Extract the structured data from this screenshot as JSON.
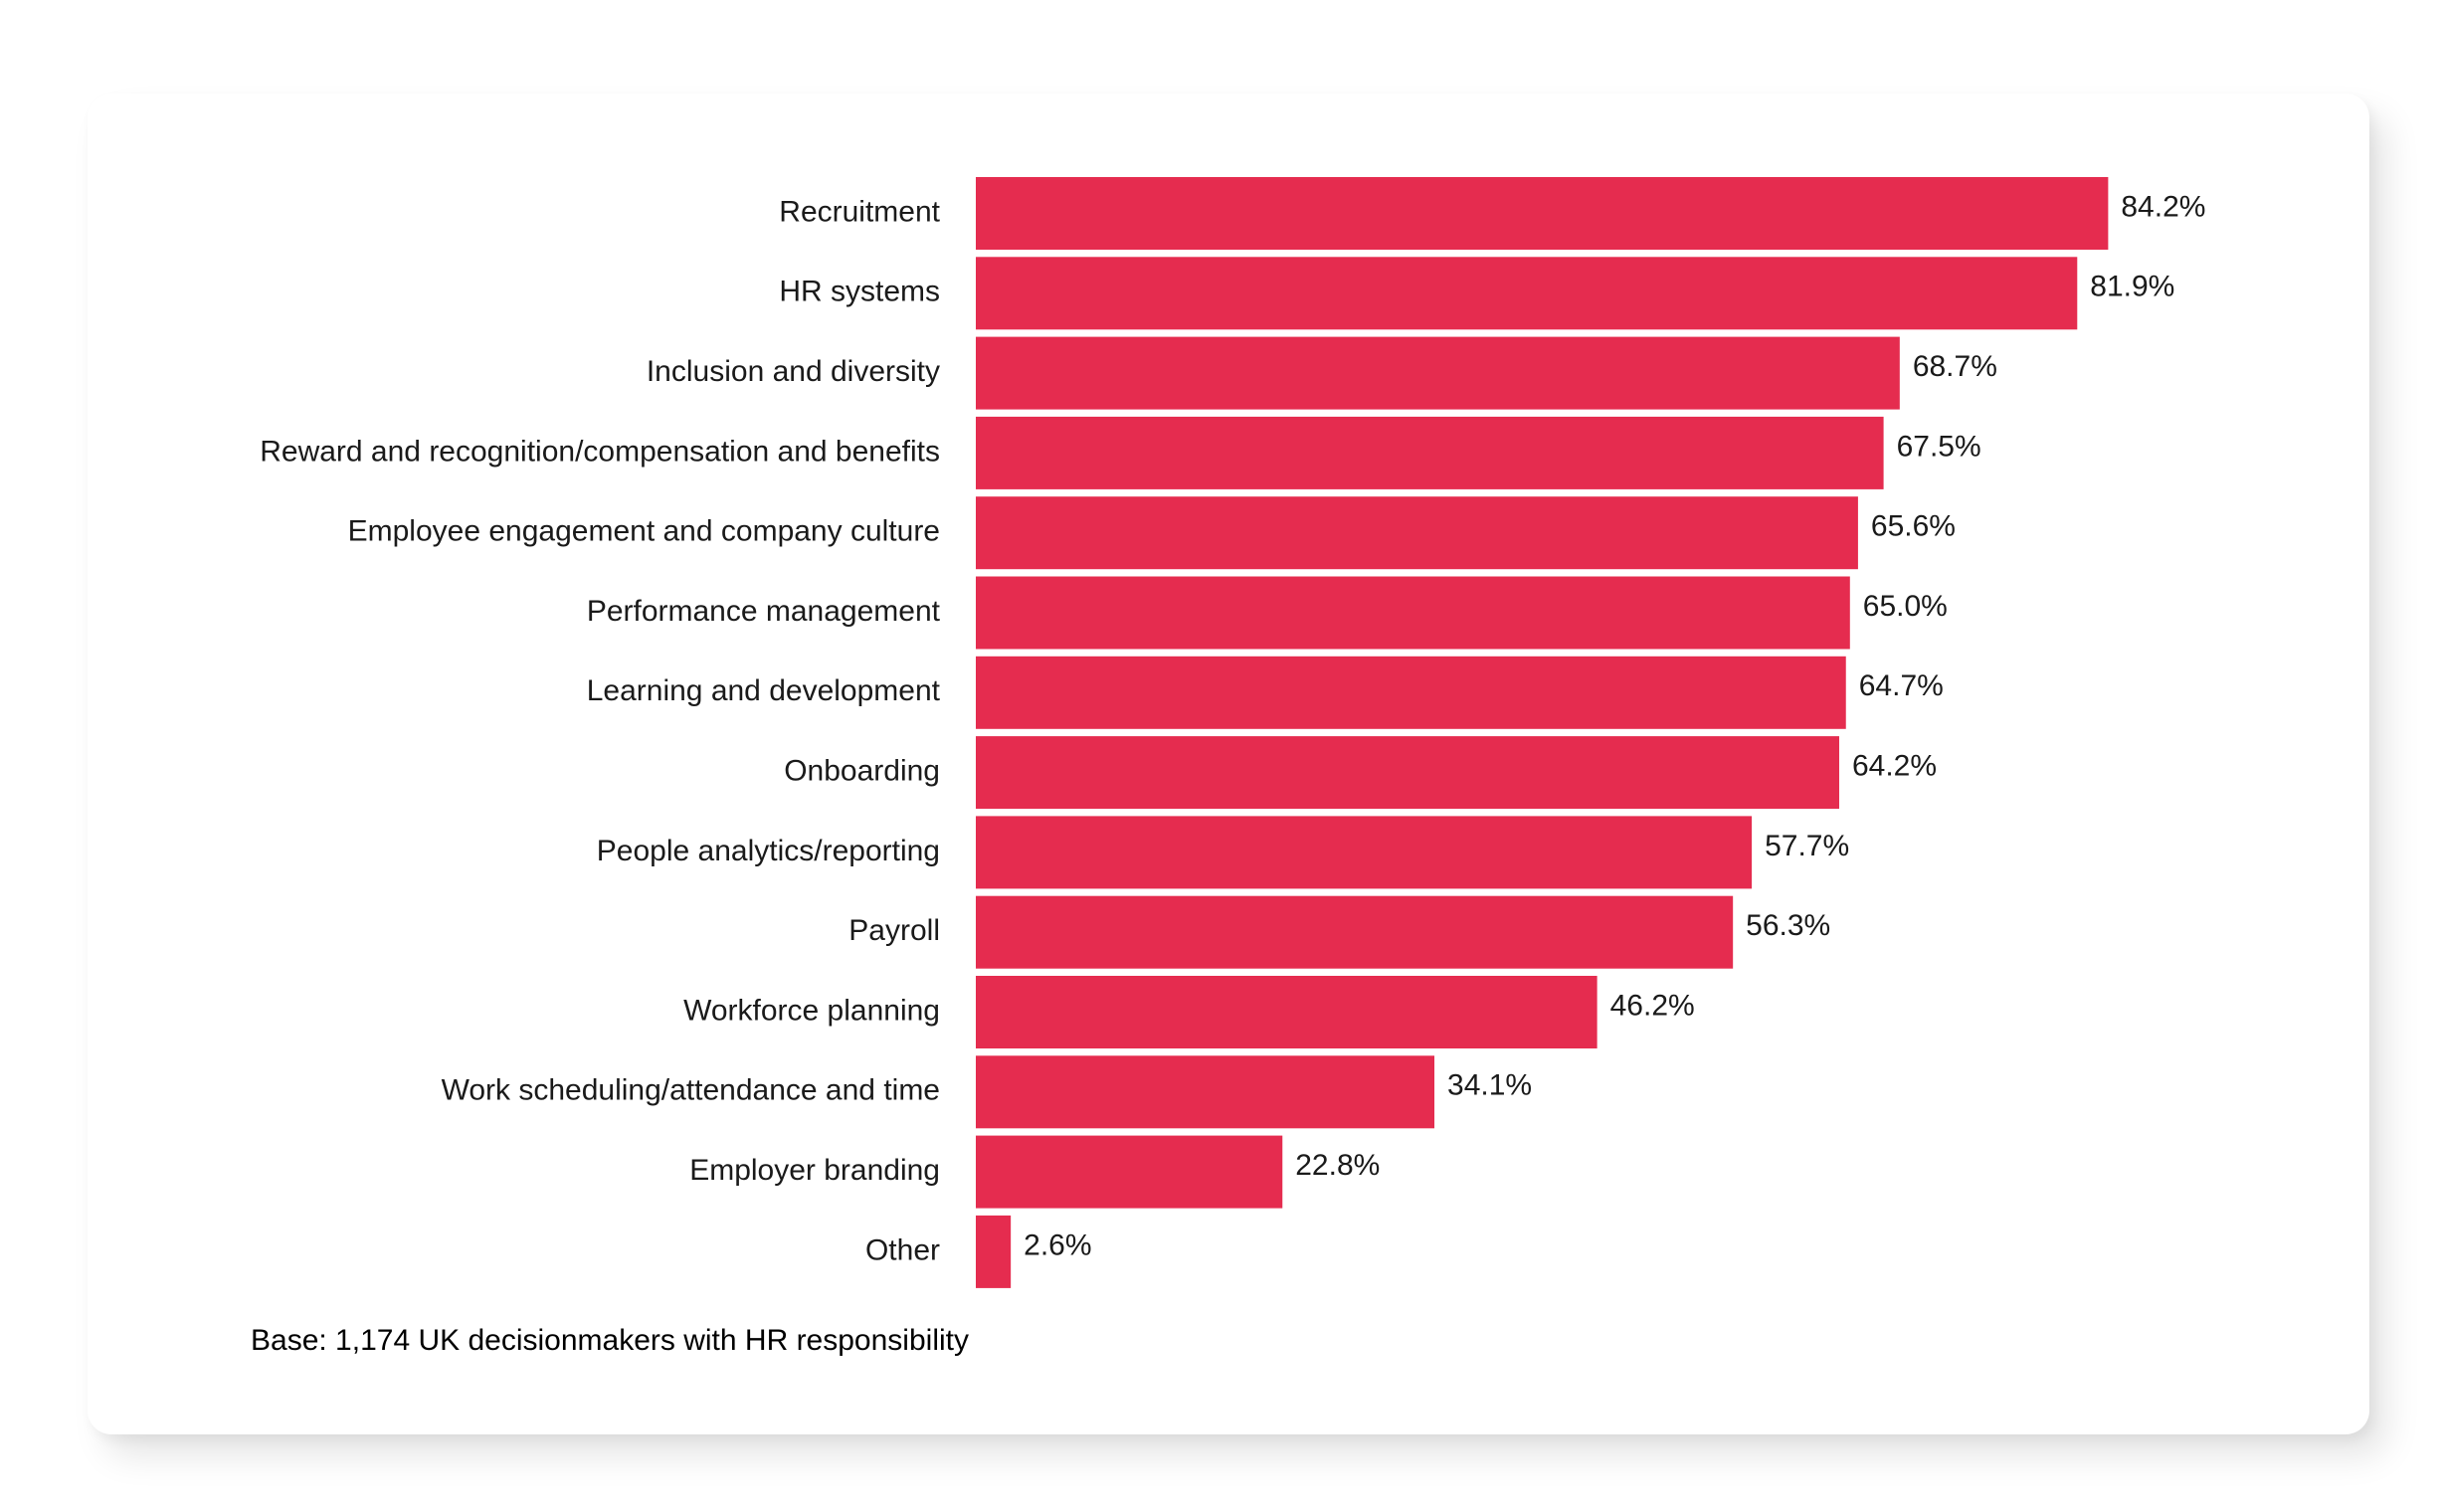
{
  "chart_data": {
    "type": "bar",
    "orientation": "horizontal",
    "title": "",
    "xlabel": "",
    "ylabel": "",
    "categories": [
      "Recruitment",
      "HR systems",
      "Inclusion and diversity",
      "Reward and recognition/compensation and benefits",
      "Employee engagement and company culture",
      "Performance management",
      "Learning and development",
      "Onboarding",
      "People analytics/reporting",
      "Payroll",
      "Workforce planning",
      "Work scheduling/attendance and time",
      "Employer branding",
      "Other"
    ],
    "values": [
      84.2,
      81.9,
      68.7,
      67.5,
      65.6,
      65.0,
      64.7,
      64.2,
      57.7,
      56.3,
      46.2,
      34.1,
      22.8,
      2.6
    ],
    "value_labels": [
      "84.2%",
      "81.9%",
      "68.7%",
      "67.5%",
      "65.6%",
      "65.0%",
      "64.7%",
      "64.2%",
      "57.7%",
      "56.3%",
      "46.2%",
      "34.1%",
      "22.8%",
      "2.6%"
    ],
    "xlim": [
      0,
      100
    ],
    "grid": false,
    "bar_color": "#e52c4f"
  },
  "footnote": "Base: 1,174 UK decisionmakers with HR responsibility"
}
